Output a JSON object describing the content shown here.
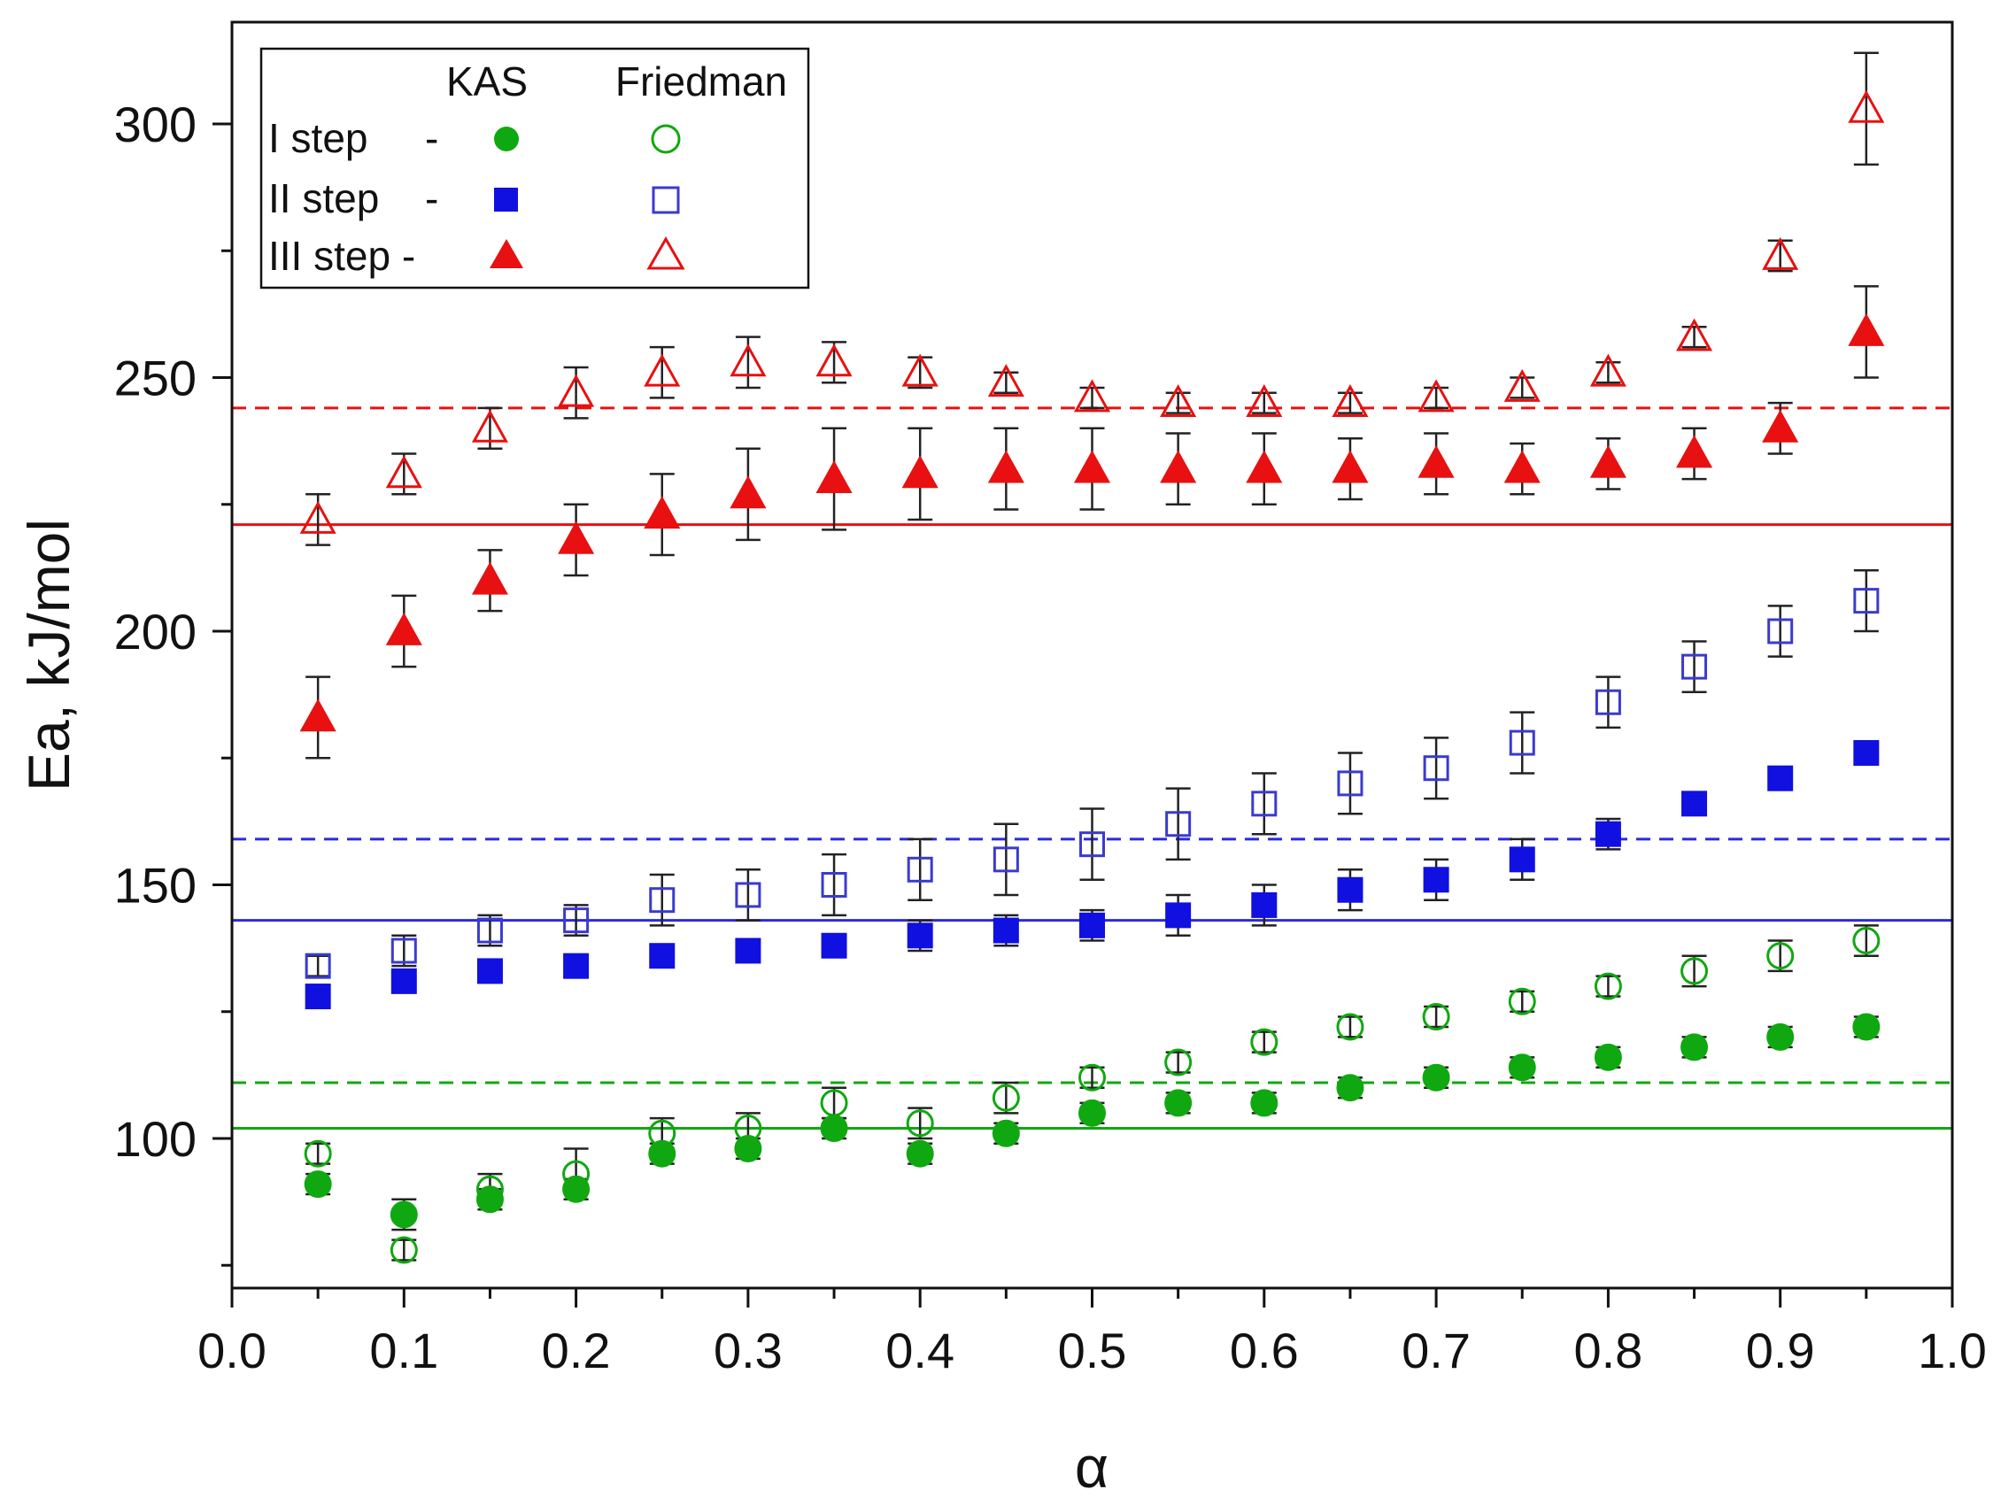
{
  "chart_data": {
    "type": "scatter",
    "xlabel": "α",
    "ylabel": "Ea, kJ/mol",
    "xlim": [
      0.0,
      1.0
    ],
    "ylim": [
      70,
      320
    ],
    "xticks": [
      "0.0",
      "0.1",
      "0.2",
      "0.3",
      "0.4",
      "0.5",
      "0.6",
      "0.7",
      "0.8",
      "0.9",
      "1.0"
    ],
    "yticks": [
      "100",
      "150",
      "200",
      "250",
      "300"
    ],
    "grid": false,
    "legend": {
      "position": "top-left",
      "header_kas": "KAS",
      "header_friedman": "Friedman",
      "rows": [
        {
          "label": "I step",
          "dash": "-"
        },
        {
          "label": "II step",
          "dash": "-"
        },
        {
          "label": "III step -"
        }
      ]
    },
    "x": [
      0.05,
      0.1,
      0.15,
      0.2,
      0.25,
      0.3,
      0.35,
      0.4,
      0.45,
      0.5,
      0.55,
      0.6,
      0.65,
      0.7,
      0.75,
      0.8,
      0.85,
      0.9,
      0.95
    ],
    "series": [
      {
        "step": "I",
        "method": "KAS",
        "marker": "circle",
        "filled": true,
        "color": "#10a810",
        "values": [
          91,
          85,
          88,
          90,
          97,
          98,
          102,
          97,
          101,
          105,
          107,
          107,
          110,
          112,
          114,
          116,
          118,
          120,
          122
        ],
        "errors": [
          2,
          3,
          2,
          2,
          2,
          2,
          2,
          2,
          2,
          2,
          2,
          2,
          2,
          2,
          2,
          2,
          2,
          2,
          2
        ]
      },
      {
        "step": "I",
        "method": "Friedman",
        "marker": "circle",
        "filled": false,
        "color": "#10a810",
        "values": [
          97,
          78,
          90,
          93,
          101,
          102,
          107,
          103,
          108,
          112,
          115,
          119,
          122,
          124,
          127,
          130,
          133,
          136,
          139
        ],
        "errors": [
          2,
          2,
          3,
          5,
          3,
          3,
          3,
          3,
          3,
          2,
          2,
          2,
          2,
          2,
          2,
          2,
          3,
          3,
          3
        ]
      },
      {
        "step": "II",
        "method": "KAS",
        "marker": "square",
        "filled": true,
        "color": "#1010e0",
        "values": [
          128,
          131,
          133,
          134,
          136,
          137,
          138,
          140,
          141,
          142,
          144,
          146,
          149,
          151,
          155,
          160,
          166,
          171,
          176
        ],
        "errors": [
          2,
          2,
          2,
          2,
          2,
          2,
          2,
          3,
          3,
          3,
          4,
          4,
          4,
          4,
          4,
          3,
          2,
          2,
          2
        ]
      },
      {
        "step": "II",
        "method": "Friedman",
        "marker": "square",
        "filled": false,
        "color": "#3a3ad0",
        "values": [
          134,
          137,
          141,
          143,
          147,
          148,
          150,
          153,
          155,
          158,
          162,
          166,
          170,
          173,
          178,
          186,
          193,
          200,
          206
        ],
        "errors": [
          2,
          3,
          3,
          3,
          5,
          5,
          6,
          6,
          7,
          7,
          7,
          6,
          6,
          6,
          6,
          5,
          5,
          5,
          6
        ]
      },
      {
        "step": "III",
        "method": "KAS",
        "marker": "triangle",
        "filled": true,
        "color": "#e81010",
        "values": [
          183,
          200,
          210,
          218,
          223,
          227,
          230,
          231,
          232,
          232,
          232,
          232,
          232,
          233,
          232,
          233,
          235,
          240,
          259
        ],
        "errors": [
          8,
          7,
          6,
          7,
          8,
          9,
          10,
          9,
          8,
          8,
          7,
          7,
          6,
          6,
          5,
          5,
          5,
          5,
          9
        ]
      },
      {
        "step": "III",
        "method": "Friedman",
        "marker": "triangle",
        "filled": false,
        "color": "#e81010",
        "values": [
          222,
          231,
          240,
          247,
          251,
          253,
          253,
          251,
          249,
          246,
          245,
          245,
          245,
          246,
          248,
          251,
          258,
          274,
          303
        ],
        "errors": [
          5,
          4,
          4,
          5,
          5,
          5,
          4,
          3,
          2,
          2,
          2,
          2,
          2,
          2,
          2,
          2,
          2,
          3,
          11
        ]
      }
    ],
    "reference_lines": [
      {
        "step": "I",
        "method": "KAS",
        "value": 102,
        "style": "solid",
        "color": "#10a810"
      },
      {
        "step": "I",
        "method": "Friedman",
        "value": 111,
        "style": "dashed",
        "color": "#10a810"
      },
      {
        "step": "II",
        "method": "KAS",
        "value": 143,
        "style": "solid",
        "color": "#2a2ae0"
      },
      {
        "step": "II",
        "method": "Friedman",
        "value": 159,
        "style": "dashed",
        "color": "#2a2ae0"
      },
      {
        "step": "III",
        "method": "KAS",
        "value": 221,
        "style": "solid",
        "color": "#e81010"
      },
      {
        "step": "III",
        "method": "Friedman",
        "value": 244,
        "style": "dashed",
        "color": "#e81010"
      }
    ]
  }
}
